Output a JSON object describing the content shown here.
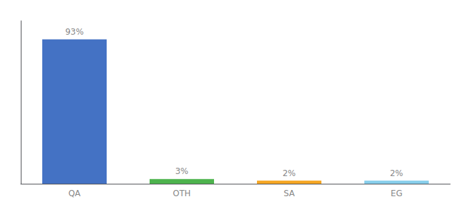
{
  "chart_data": {
    "type": "bar",
    "categories": [
      "QA",
      "OTH",
      "SA",
      "EG"
    ],
    "values": [
      93,
      3,
      2,
      2
    ],
    "value_labels": [
      "93%",
      "3%",
      "2%",
      "2%"
    ],
    "colors": [
      "#4472c4",
      "#4db34d",
      "#f5a623",
      "#87ceeb"
    ],
    "ylim": [
      0,
      105
    ],
    "data_labels": true,
    "tick_labels": "x",
    "grid": false
  }
}
